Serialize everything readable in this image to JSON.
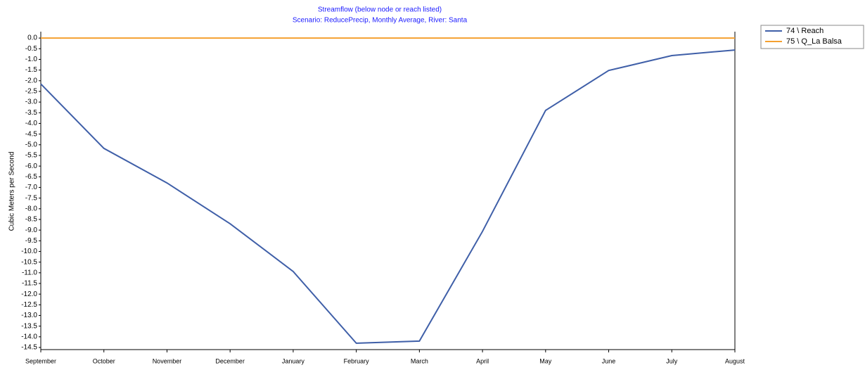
{
  "chart_data": {
    "type": "line",
    "title": "Streamflow (below node or reach listed)",
    "subtitle": "Scenario: ReducePrecip,  Monthly Average,  River: Santa",
    "y_label": "Cubic Meters per Second",
    "categories": [
      "September",
      "October",
      "November",
      "December",
      "January",
      "February",
      "March",
      "April",
      "May",
      "June",
      "July",
      "August"
    ],
    "series": [
      {
        "name": "74 \\ Reach",
        "color": "#3f5fa8",
        "values": [
          -2.15,
          -5.17,
          -6.79,
          -8.7,
          -10.94,
          -14.3,
          -14.2,
          -9.06,
          -3.39,
          -1.52,
          -0.82,
          -0.56
        ]
      },
      {
        "name": "75 \\ Q_La Balsa",
        "color": "#f5a030",
        "values": [
          0,
          0,
          0,
          0,
          0,
          0,
          0,
          0,
          0,
          0,
          0,
          0
        ]
      }
    ],
    "ylim": [
      -14.6,
      0.3
    ],
    "yticks": [
      {
        "value": 0,
        "label": "0.0"
      },
      -0.5,
      {
        "value": -1,
        "label": "-1.0"
      },
      -1.5,
      {
        "value": -2,
        "label": "-2.0"
      },
      -2.5,
      {
        "value": -3,
        "label": "-3.0"
      },
      -3.5,
      {
        "value": -4,
        "label": "-4.0"
      },
      -4.5,
      {
        "value": -5,
        "label": "-5.0"
      },
      -5.5,
      {
        "value": -6,
        "label": "-6.0"
      },
      -6.5,
      {
        "value": -7,
        "label": "-7.0"
      },
      -7.5,
      {
        "value": -8,
        "label": "-8.0"
      },
      -8.5,
      {
        "value": -9,
        "label": "-9.0"
      },
      -9.5,
      {
        "value": -10,
        "label": "-10.0"
      },
      -10.5,
      {
        "value": -11,
        "label": "-11.0"
      },
      -11.5,
      {
        "value": -12,
        "label": "-12.0"
      },
      -12.5,
      {
        "value": -13,
        "label": "-13.0"
      },
      -13.5,
      {
        "value": -14,
        "label": "-14.0"
      },
      -14.5
    ],
    "grid": false,
    "legend": "right"
  }
}
